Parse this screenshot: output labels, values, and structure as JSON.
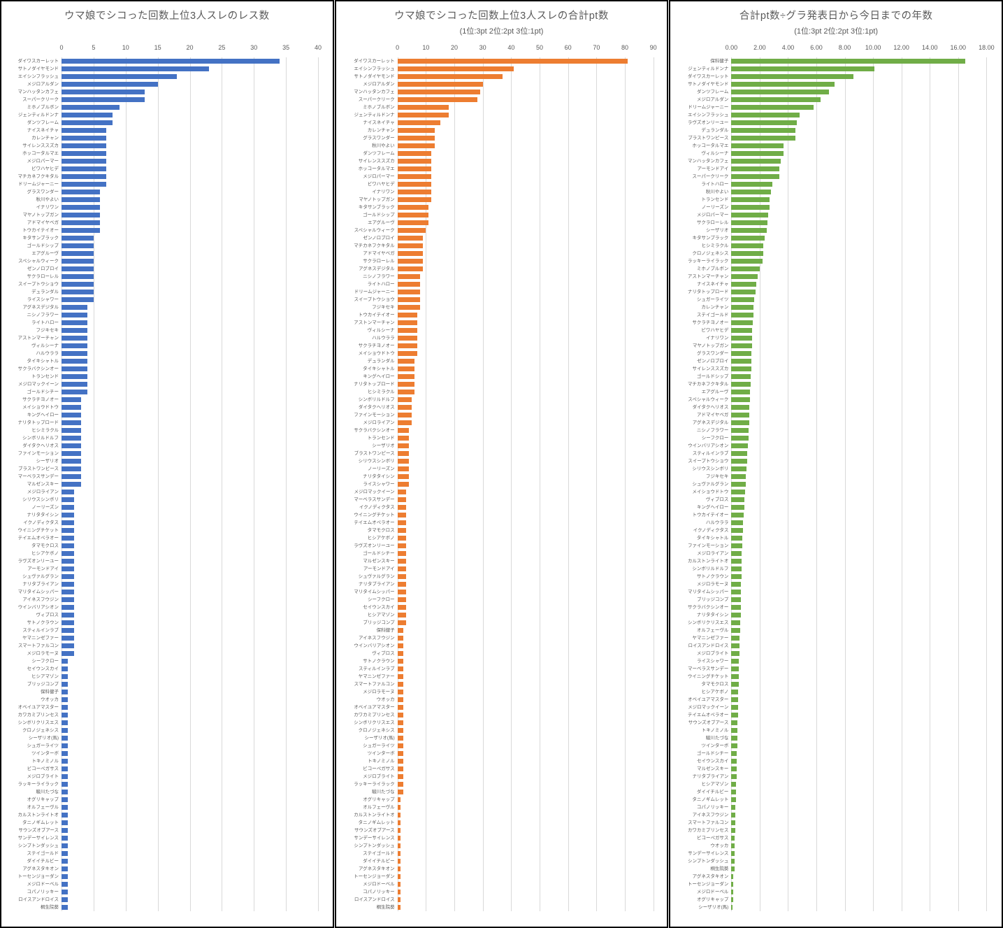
{
  "chart_data": [
    {
      "type": "bar",
      "orientation": "horizontal",
      "title": "ウマ娘でシコった回数上位3人スレのレス数",
      "subtitle": "",
      "color": "#4472c4",
      "grid": true,
      "legend": "none",
      "xlim": [
        0,
        40
      ],
      "tick_labels": [
        "0",
        "5",
        "10",
        "15",
        "20",
        "25",
        "30",
        "35",
        "40"
      ],
      "categories": [
        "ダイワスカーレット",
        "サトノダイヤモンド",
        "エイシンフラッシュ",
        "メジロアルダン",
        "マンハッタンカフェ",
        "スーパークリーク",
        "ミホノブルボン",
        "ジェンティルドンナ",
        "ダンツフレーム",
        "ナイスネイチャ",
        "カレンチャン",
        "サイレンススズカ",
        "ホッコータルマエ",
        "メジロパーマー",
        "ビワハヤヒデ",
        "マチカネフクキタル",
        "ドリームジャーニー",
        "グラスワンダー",
        "秋川やよい",
        "イナリワン",
        "マヤノトップガン",
        "アドマイヤベガ",
        "トウカイテイオー",
        "キタサンブラック",
        "ゴールドシップ",
        "エアグルーヴ",
        "スペシャルウィーク",
        "ゼンノロブロイ",
        "サクラローレル",
        "スイープトウショウ",
        "デュランダル",
        "ライスシャワー",
        "アグネスデジタル",
        "ニシノフラワー",
        "ライトハロー",
        "フジキセキ",
        "アストンマーチャン",
        "ヴィルシーナ",
        "ハルウララ",
        "タイキシャトル",
        "サクラバクシンオー",
        "トランセンド",
        "メジロマックイーン",
        "ゴールドシチー",
        "サクラチヨノオー",
        "メイショウドトウ",
        "キングヘイロー",
        "ナリタトップロード",
        "ヒシミラクル",
        "シンボリルドルフ",
        "ダイタクヘリオス",
        "ファインモーション",
        "シーザリオ",
        "ブラストワンピース",
        "マーベラスサンデー",
        "マルゼンスキー",
        "メジロライアン",
        "シリウスシンボリ",
        "ノーリーズン",
        "ナリタタイシン",
        "イクノディクタス",
        "ウイニングチケット",
        "テイエムオペラオー",
        "タマモクロス",
        "ヒシアケボノ",
        "ラヴズオンリーユー",
        "アーモンドアイ",
        "シュヴァルグラン",
        "ナリタブライアン",
        "マリタイムシッパー",
        "アイネスフウジン",
        "ウインバリアシオン",
        "ヴィブロス",
        "サトノクラウン",
        "スティルインラブ",
        "ヤマニンゼファー",
        "スマートファルコン",
        "メジロラモーヌ",
        "シーフクロー",
        "セイウンスカイ",
        "ヒシアマゾン",
        "ブリッジコンプ",
        "保科健子",
        "ウオッカ",
        "オベイユアマスター",
        "カワカミプリンセス",
        "シンボリクリスエス",
        "クロノジェネシス",
        "シーザリオ(馬)",
        "シュガーライツ",
        "ツインターボ",
        "トキノミノル",
        "ビコーペガサス",
        "メジロブライト",
        "ラッキーライラック",
        "駿川たづな",
        "オグリキャップ",
        "オルフェーヴル",
        "カルストンライトオ",
        "タニノギムレット",
        "サウンズオブアース",
        "サンデーサイレンス",
        "シンプトンダッシュ",
        "ステイゴールド",
        "ダイイチルビー",
        "アグネスタキオン",
        "トーセンジョーダン",
        "メジロドーベル",
        "コパノリッキー",
        "ロイスアンドロイス",
        "桐生院葵"
      ],
      "values": [
        34,
        23,
        18,
        15,
        13,
        13,
        9,
        8,
        8,
        7,
        7,
        7,
        7,
        7,
        7,
        7,
        7,
        6,
        6,
        6,
        6,
        6,
        6,
        5,
        5,
        5,
        5,
        5,
        5,
        5,
        5,
        5,
        4,
        4,
        4,
        4,
        4,
        4,
        4,
        4,
        4,
        4,
        4,
        4,
        3,
        3,
        3,
        3,
        3,
        3,
        3,
        3,
        3,
        3,
        3,
        3,
        2,
        2,
        2,
        2,
        2,
        2,
        2,
        2,
        2,
        2,
        2,
        2,
        2,
        2,
        2,
        2,
        2,
        2,
        2,
        2,
        2,
        2,
        1,
        1,
        1,
        1,
        1,
        1,
        1,
        1,
        1,
        1,
        1,
        1,
        1,
        1,
        1,
        1,
        1,
        1,
        1,
        1,
        1,
        1,
        1,
        1,
        1,
        1,
        1,
        1,
        1,
        1,
        1,
        1,
        1
      ]
    },
    {
      "type": "bar",
      "orientation": "horizontal",
      "title": "ウマ娘でシコった回数上位3人スレの合計pt数",
      "subtitle": "(1位:3pt 2位:2pt 3位:1pt)",
      "color": "#ed7d31",
      "grid": true,
      "legend": "none",
      "xlim": [
        0,
        90
      ],
      "tick_labels": [
        "0",
        "10",
        "20",
        "30",
        "40",
        "50",
        "60",
        "70",
        "80",
        "90"
      ],
      "categories": [
        "ダイワスカーレット",
        "エイシンフラッシュ",
        "サトノダイヤモンド",
        "メジロアルダン",
        "マンハッタンカフェ",
        "スーパークリーク",
        "ミホノブルボン",
        "ジェンティルドンナ",
        "ナイスネイチャ",
        "カレンチャン",
        "グラスワンダー",
        "秋川やよい",
        "ダンツフレーム",
        "サイレンススズカ",
        "ホッコータルマエ",
        "メジロパーマー",
        "ビワハヤヒデ",
        "イナリワン",
        "マヤノトップガン",
        "キタサンブラック",
        "ゴールドシップ",
        "エアグルーヴ",
        "スペシャルウィーク",
        "ゼンノロブロイ",
        "マチカネフクキタル",
        "アドマイヤベガ",
        "サクラローレル",
        "アグネスデジタル",
        "ニシノフラワー",
        "ライトハロー",
        "ドリームジャーニー",
        "スイープトウショウ",
        "フジキセキ",
        "トウカイテイオー",
        "アストンマーチャン",
        "ヴィルシーナ",
        "ハルウララ",
        "サクラチヨノオー",
        "メイショウドトウ",
        "デュランダル",
        "タイキシャトル",
        "キングヘイロー",
        "ナリタトップロード",
        "ヒシミラクル",
        "シンボリルドルフ",
        "ダイタクヘリオス",
        "ファインモーション",
        "メジロライアン",
        "サクラバクシンオー",
        "トランセンド",
        "シーザリオ",
        "ブラストワンピース",
        "シリウスシンボリ",
        "ノーリーズン",
        "ナリタタイシン",
        "ライスシャワー",
        "メジロマックイーン",
        "マーベラスサンデー",
        "イクノディクタス",
        "ウイニングチケット",
        "テイエムオペラオー",
        "タマモクロス",
        "ヒシアケボノ",
        "ラヴズオンリーユー",
        "ゴールドシチー",
        "マルゼンスキー",
        "アーモンドアイ",
        "シュヴァルグラン",
        "ナリタブライアン",
        "マリタイムシッパー",
        "シーフクロー",
        "セイウンスカイ",
        "ヒシアマゾン",
        "ブリッジコンプ",
        "保科健子",
        "アイネスフウジン",
        "ウインバリアシオン",
        "ヴィブロス",
        "サトノクラウン",
        "スティルインラブ",
        "ヤマニンゼファー",
        "スマートファルコン",
        "メジロラモーヌ",
        "ウオッカ",
        "オベイユアマスター",
        "カワカミプリンセス",
        "シンボリクリスエス",
        "クロノジェネシス",
        "シーザリオ(馬)",
        "シュガーライツ",
        "ツインターボ",
        "トキノミノル",
        "ビコーペガサス",
        "メジロブライト",
        "ラッキーライラック",
        "駿川たづな",
        "オグリキャップ",
        "オルフェーヴル",
        "カルストンライトオ",
        "タニノギムレット",
        "サウンズオブアース",
        "サンデーサイレンス",
        "シンプトンダッシュ",
        "ステイゴールド",
        "ダイイチルビー",
        "アグネスタキオン",
        "トーセンジョーダン",
        "メジロドーベル",
        "コパノリッキー",
        "ロイスアンドロイス",
        "桐生院葵"
      ],
      "values": [
        81,
        41,
        37,
        30,
        29,
        28,
        18,
        18,
        15,
        13,
        13,
        13,
        12,
        12,
        12,
        12,
        12,
        12,
        12,
        11,
        11,
        11,
        10,
        9,
        9,
        9,
        9,
        9,
        8,
        8,
        8,
        8,
        8,
        7,
        7,
        7,
        7,
        7,
        7,
        6,
        6,
        6,
        6,
        6,
        5,
        5,
        5,
        5,
        4,
        4,
        4,
        4,
        4,
        4,
        4,
        4,
        3,
        3,
        3,
        3,
        3,
        3,
        3,
        3,
        3,
        3,
        3,
        3,
        3,
        3,
        3,
        3,
        3,
        3,
        2,
        2,
        2,
        2,
        2,
        2,
        2,
        2,
        2,
        2,
        2,
        2,
        2,
        2,
        2,
        2,
        2,
        2,
        2,
        2,
        2,
        2,
        1,
        1,
        1,
        1,
        1,
        1,
        1,
        1,
        1,
        1,
        1,
        1,
        1,
        1,
        1
      ]
    },
    {
      "type": "bar",
      "orientation": "horizontal",
      "title": "合計pt数÷グラ発表日から今日までの年数",
      "subtitle": "(1位:3pt 2位:2pt 3位:1pt)",
      "color": "#70ad47",
      "grid": true,
      "legend": "none",
      "xlim": [
        0,
        18
      ],
      "tick_labels": [
        "0.00",
        "2.00",
        "4.00",
        "6.00",
        "8.00",
        "10.00",
        "12.00",
        "14.00",
        "16.00",
        "18.00"
      ],
      "categories": [
        "保科健子",
        "ジェンティルドンナ",
        "ダイワスカーレット",
        "サトノダイヤモンド",
        "ダンツフレーム",
        "メジロアルダン",
        "ドリームジャーニー",
        "エイシンフラッシュ",
        "ラヴズオンリーユー",
        "デュランダル",
        "ブラストワンピース",
        "ホッコータルマエ",
        "ヴィルシーナ",
        "マンハッタンカフェ",
        "アーモンドアイ",
        "スーパークリーク",
        "ライトハロー",
        "秋川やよい",
        "トランセンド",
        "ノーリーズン",
        "メジロパーマー",
        "サクラローレル",
        "シーザリオ",
        "キタサンブラック",
        "ヒシミラクル",
        "クロノジェネシス",
        "ラッキーライラック",
        "ミホノブルボン",
        "アストンマーチャン",
        "ナイスネイチャ",
        "ナリタトップロード",
        "シュガーライツ",
        "カレンチャン",
        "ステイゴールド",
        "サクラチヨノオー",
        "ビワハヤヒデ",
        "イナリワン",
        "マヤノトップガン",
        "グラスワンダー",
        "ゼンノロブロイ",
        "サイレンススズカ",
        "ゴールドシップ",
        "マチカネフクキタル",
        "エアグルーヴ",
        "スペシャルウィーク",
        "ダイタクヘリオス",
        "アドマイヤベガ",
        "アグネスデジタル",
        "ニシノフラワー",
        "シーフクロー",
        "ウインバリアシオン",
        "スティルインラブ",
        "スイープトウショウ",
        "シリウスシンボリ",
        "フジキセキ",
        "シュヴァルグラン",
        "メイショウドトウ",
        "ヴィブロス",
        "キングヘイロー",
        "トウカイテイオー",
        "ハルウララ",
        "イクノディクタス",
        "タイキシャトル",
        "ファインモーション",
        "メジロライアン",
        "カルストンライトオ",
        "シンボリルドルフ",
        "サトノクラウン",
        "メジロラモーヌ",
        "マリタイムシッパー",
        "ブリッジコンプ",
        "サクラバクシンオー",
        "ナリタタイシン",
        "シンボリクリスエス",
        "オルフェーヴル",
        "ヤマニンゼファー",
        "ロイスアンドロイス",
        "メジロブライト",
        "ライスシャワー",
        "マーベラスサンデー",
        "ウイニングチケット",
        "タマモクロス",
        "ヒシアケボノ",
        "オベイユアマスター",
        "メジロマックイーン",
        "テイエムオペラオー",
        "サウンズオブアース",
        "トキノミノル",
        "駿川たづな",
        "ツインターボ",
        "ゴールドシチー",
        "セイウンスカイ",
        "マルゼンスキー",
        "ナリタブライアン",
        "ヒシアマゾン",
        "ダイイチルビー",
        "タニノギムレット",
        "コパノリッキー",
        "アイネスフウジン",
        "スマートファルコン",
        "カワカミプリンセス",
        "ビコーペガサス",
        "ウオッカ",
        "サンデーサイレンス",
        "シンプトンダッシュ",
        "桐生院葵",
        "アグネスタキオン",
        "トーセンジョーダン",
        "メジロドーベル",
        "オグリキャップ",
        "シーザリオ(馬)"
      ],
      "values": [
        16.5,
        10.1,
        8.6,
        7.3,
        6.9,
        6.3,
        5.8,
        4.8,
        4.6,
        4.5,
        4.5,
        3.7,
        3.7,
        3.5,
        3.4,
        3.4,
        2.9,
        2.8,
        2.7,
        2.7,
        2.6,
        2.55,
        2.5,
        2.35,
        2.25,
        2.25,
        2.2,
        2.0,
        1.85,
        1.75,
        1.7,
        1.6,
        1.55,
        1.55,
        1.5,
        1.45,
        1.45,
        1.45,
        1.4,
        1.4,
        1.4,
        1.35,
        1.35,
        1.3,
        1.3,
        1.25,
        1.25,
        1.25,
        1.2,
        1.2,
        1.15,
        1.1,
        1.1,
        1.05,
        1.0,
        1.0,
        0.95,
        0.9,
        0.9,
        0.85,
        0.8,
        0.8,
        0.78,
        0.75,
        0.74,
        0.72,
        0.71,
        0.7,
        0.69,
        0.68,
        0.67,
        0.66,
        0.65,
        0.64,
        0.6,
        0.59,
        0.58,
        0.56,
        0.55,
        0.53,
        0.52,
        0.51,
        0.5,
        0.49,
        0.47,
        0.46,
        0.45,
        0.44,
        0.43,
        0.42,
        0.4,
        0.38,
        0.37,
        0.36,
        0.35,
        0.33,
        0.31,
        0.3,
        0.28,
        0.27,
        0.26,
        0.25,
        0.24,
        0.23,
        0.22,
        0.21,
        0.15,
        0.14,
        0.13,
        0.12,
        0.1
      ]
    }
  ]
}
